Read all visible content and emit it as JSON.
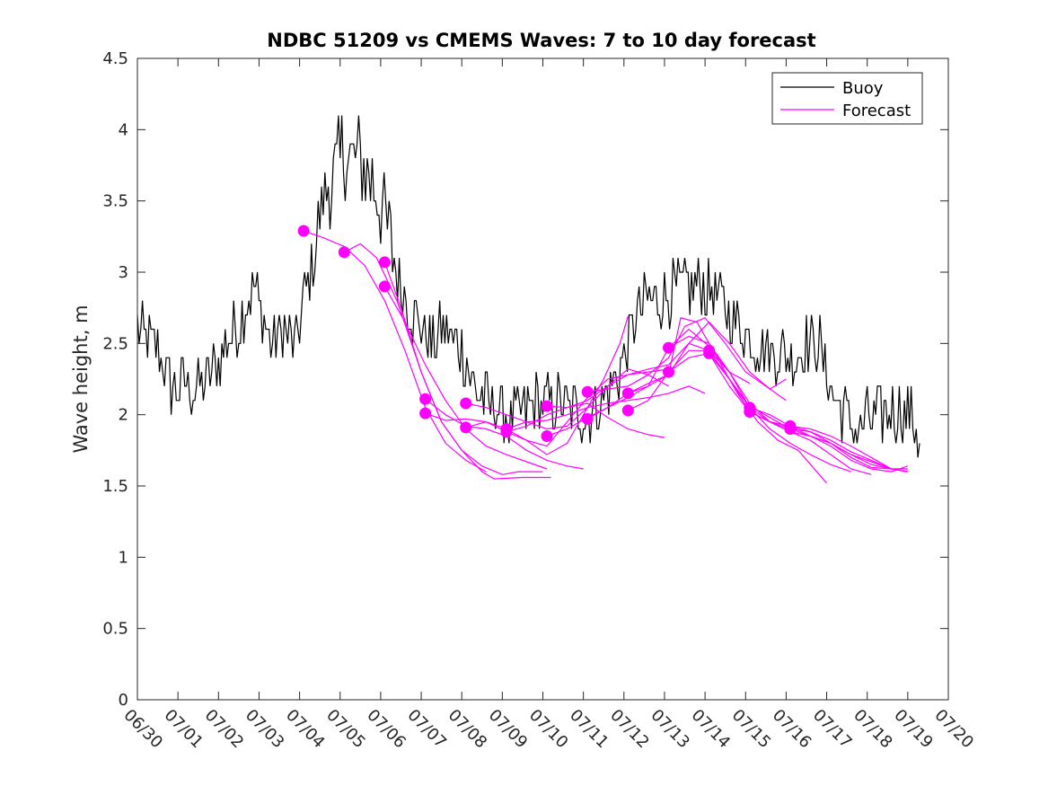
{
  "chart_data": {
    "type": "line",
    "title": "NDBC 51209 vs CMEMS Waves: 7 to 10 day forecast",
    "xlabel": "",
    "ylabel": "Wave height, m",
    "xlim": [
      0,
      20
    ],
    "ylim": [
      0,
      4.5
    ],
    "x_tick_labels": [
      "06/30",
      "07/01",
      "07/02",
      "07/03",
      "07/04",
      "07/05",
      "07/06",
      "07/07",
      "07/08",
      "07/09",
      "07/10",
      "07/11",
      "07/12",
      "07/13",
      "07/14",
      "07/15",
      "07/16",
      "07/17",
      "07/18",
      "07/19",
      "07/20"
    ],
    "y_ticks": [
      0,
      0.5,
      1,
      1.5,
      2,
      2.5,
      3,
      3.5,
      4,
      4.5
    ],
    "y_tick_labels": [
      "0",
      "0.5",
      "1",
      "1.5",
      "2",
      "2.5",
      "3",
      "3.5",
      "4",
      "4.5"
    ],
    "x_unit_note": "x values are days after 06/30",
    "grid": false,
    "legend_position": "top-right",
    "colors": {
      "buoy": "#000000",
      "forecast": "#ff00ff"
    },
    "buoy_anchors": [
      [
        0.0,
        2.6
      ],
      [
        0.3,
        2.5
      ],
      [
        0.6,
        2.4
      ],
      [
        0.8,
        2.2
      ],
      [
        1.2,
        2.2
      ],
      [
        1.5,
        2.2
      ],
      [
        1.8,
        2.3
      ],
      [
        2.2,
        2.5
      ],
      [
        2.6,
        2.7
      ],
      [
        2.9,
        2.9
      ],
      [
        3.1,
        2.7
      ],
      [
        3.3,
        2.5
      ],
      [
        3.6,
        2.6
      ],
      [
        3.9,
        2.5
      ],
      [
        4.1,
        2.8
      ],
      [
        4.3,
        3.0
      ],
      [
        4.5,
        3.4
      ],
      [
        4.7,
        3.6
      ],
      [
        4.9,
        3.7
      ],
      [
        5.1,
        3.85
      ],
      [
        5.3,
        3.8
      ],
      [
        5.5,
        3.75
      ],
      [
        5.7,
        3.7
      ],
      [
        5.9,
        3.6
      ],
      [
        6.1,
        3.4
      ],
      [
        6.3,
        3.1
      ],
      [
        6.5,
        2.9
      ],
      [
        6.7,
        2.75
      ],
      [
        6.9,
        2.65
      ],
      [
        7.1,
        2.55
      ],
      [
        7.3,
        2.5
      ],
      [
        7.5,
        2.6
      ],
      [
        7.7,
        2.55
      ],
      [
        7.9,
        2.5
      ],
      [
        8.1,
        2.4
      ],
      [
        8.3,
        2.2
      ],
      [
        8.6,
        2.1
      ],
      [
        8.9,
        2.05
      ],
      [
        9.2,
        1.95
      ],
      [
        9.5,
        2.0
      ],
      [
        9.8,
        2.1
      ],
      [
        10.1,
        2.05
      ],
      [
        10.4,
        2.1
      ],
      [
        10.7,
        2.05
      ],
      [
        11.0,
        2.0
      ],
      [
        11.3,
        2.05
      ],
      [
        11.6,
        2.15
      ],
      [
        11.9,
        2.3
      ],
      [
        12.1,
        2.5
      ],
      [
        12.3,
        2.7
      ],
      [
        12.6,
        2.8
      ],
      [
        12.9,
        2.8
      ],
      [
        13.2,
        2.85
      ],
      [
        13.5,
        2.9
      ],
      [
        13.8,
        2.9
      ],
      [
        14.1,
        2.9
      ],
      [
        14.4,
        2.8
      ],
      [
        14.7,
        2.7
      ],
      [
        15.0,
        2.6
      ],
      [
        15.3,
        2.5
      ],
      [
        15.6,
        2.45
      ],
      [
        15.9,
        2.45
      ],
      [
        16.2,
        2.4
      ],
      [
        16.5,
        2.5
      ],
      [
        16.8,
        2.5
      ],
      [
        17.0,
        2.3
      ],
      [
        17.2,
        2.1
      ],
      [
        17.5,
        2.0
      ],
      [
        17.8,
        1.9
      ],
      [
        18.0,
        1.95
      ],
      [
        18.3,
        2.0
      ],
      [
        18.6,
        2.05
      ],
      [
        18.9,
        2.0
      ],
      [
        19.2,
        1.95
      ],
      [
        19.3,
        1.8
      ]
    ],
    "buoy_noise_amplitude": 0.22,
    "forecast_markers": [
      [
        4.1,
        3.29
      ],
      [
        5.1,
        3.14
      ],
      [
        6.1,
        3.07
      ],
      [
        6.1,
        2.9
      ],
      [
        7.1,
        2.11
      ],
      [
        7.1,
        2.01
      ],
      [
        8.1,
        2.08
      ],
      [
        8.1,
        1.91
      ],
      [
        9.1,
        1.9
      ],
      [
        9.1,
        1.88
      ],
      [
        10.1,
        2.06
      ],
      [
        10.1,
        1.85
      ],
      [
        11.1,
        2.16
      ],
      [
        11.1,
        1.97
      ],
      [
        12.1,
        2.15
      ],
      [
        12.1,
        2.03
      ],
      [
        13.1,
        2.47
      ],
      [
        13.1,
        2.3
      ],
      [
        14.1,
        2.45
      ],
      [
        14.1,
        2.43
      ],
      [
        15.1,
        2.05
      ],
      [
        15.1,
        2.02
      ],
      [
        16.1,
        1.92
      ],
      [
        16.1,
        1.9
      ]
    ],
    "series": [
      {
        "name": "Buoy"
      },
      {
        "name": "Forecast"
      }
    ],
    "forecast_tracks": [
      [
        [
          4.1,
          3.29
        ],
        [
          4.6,
          3.24
        ],
        [
          5.1,
          3.18
        ],
        [
          5.6,
          3.05
        ],
        [
          6.1,
          2.8
        ],
        [
          6.6,
          2.45
        ],
        [
          7.1,
          2.05
        ],
        [
          7.6,
          1.8
        ],
        [
          8.1,
          1.68
        ],
        [
          8.6,
          1.6
        ]
      ],
      [
        [
          5.1,
          3.14
        ],
        [
          5.5,
          3.2
        ],
        [
          5.9,
          3.1
        ],
        [
          6.4,
          2.8
        ],
        [
          7.0,
          2.3
        ],
        [
          7.5,
          1.95
        ],
        [
          8.0,
          1.75
        ],
        [
          8.5,
          1.64
        ],
        [
          9.0,
          1.58
        ],
        [
          9.4,
          1.6
        ],
        [
          10.0,
          1.6
        ]
      ],
      [
        [
          6.1,
          3.07
        ],
        [
          6.5,
          2.75
        ],
        [
          7.0,
          2.3
        ],
        [
          7.5,
          1.95
        ],
        [
          8.0,
          1.75
        ],
        [
          8.5,
          1.6
        ],
        [
          8.8,
          1.55
        ],
        [
          9.5,
          1.56
        ],
        [
          10.2,
          1.56
        ]
      ],
      [
        [
          6.1,
          2.9
        ],
        [
          6.6,
          2.65
        ],
        [
          7.1,
          2.35
        ],
        [
          7.6,
          2.1
        ],
        [
          8.1,
          1.9
        ],
        [
          8.6,
          1.78
        ],
        [
          9.1,
          1.72
        ],
        [
          9.6,
          1.67
        ],
        [
          10.1,
          1.62
        ]
      ],
      [
        [
          7.1,
          2.11
        ],
        [
          7.6,
          2.0
        ],
        [
          8.1,
          1.92
        ],
        [
          8.6,
          1.9
        ],
        [
          9.1,
          1.85
        ],
        [
          9.6,
          1.75
        ],
        [
          10.1,
          1.68
        ],
        [
          10.6,
          1.64
        ],
        [
          11.0,
          1.62
        ]
      ],
      [
        [
          7.1,
          2.01
        ],
        [
          7.6,
          1.96
        ],
        [
          8.1,
          1.97
        ],
        [
          8.6,
          1.95
        ],
        [
          9.1,
          1.9
        ],
        [
          9.6,
          1.82
        ],
        [
          10.1,
          1.72
        ],
        [
          10.6,
          1.8
        ],
        [
          11.0,
          2.0
        ],
        [
          11.5,
          2.25
        ],
        [
          11.9,
          2.5
        ],
        [
          12.1,
          2.69
        ]
      ],
      [
        [
          8.1,
          2.08
        ],
        [
          8.6,
          2.05
        ],
        [
          9.1,
          2.0
        ],
        [
          9.6,
          1.95
        ],
        [
          10.1,
          1.9
        ],
        [
          10.6,
          1.92
        ],
        [
          11.1,
          2.05
        ],
        [
          11.6,
          2.2
        ],
        [
          12.1,
          2.32
        ],
        [
          12.6,
          2.28
        ],
        [
          13.1,
          2.2
        ]
      ],
      [
        [
          8.1,
          1.91
        ],
        [
          8.6,
          1.95
        ],
        [
          9.1,
          1.88
        ],
        [
          9.6,
          1.82
        ],
        [
          10.1,
          1.78
        ],
        [
          10.6,
          1.95
        ],
        [
          11.1,
          2.12
        ],
        [
          11.6,
          2.25
        ],
        [
          12.1,
          2.28
        ],
        [
          12.6,
          2.3
        ],
        [
          13.1,
          2.32
        ]
      ],
      [
        [
          9.1,
          1.9
        ],
        [
          9.6,
          1.95
        ],
        [
          10.1,
          1.96
        ],
        [
          10.6,
          2.0
        ],
        [
          11.1,
          2.05
        ],
        [
          11.6,
          2.08
        ],
        [
          12.1,
          2.1
        ],
        [
          12.6,
          2.12
        ],
        [
          13.1,
          2.15
        ],
        [
          13.6,
          2.2
        ],
        [
          14.0,
          2.15
        ]
      ],
      [
        [
          9.1,
          1.88
        ],
        [
          9.6,
          1.92
        ],
        [
          10.1,
          2.0
        ],
        [
          10.6,
          2.05
        ],
        [
          11.1,
          2.08
        ],
        [
          11.6,
          1.98
        ],
        [
          12.1,
          1.9
        ],
        [
          12.6,
          1.86
        ],
        [
          13.0,
          1.84
        ]
      ],
      [
        [
          10.1,
          2.06
        ],
        [
          10.6,
          2.05
        ],
        [
          11.1,
          2.1
        ],
        [
          11.6,
          2.2
        ],
        [
          12.1,
          2.28
        ],
        [
          12.6,
          2.32
        ],
        [
          13.1,
          2.35
        ],
        [
          13.6,
          2.5
        ],
        [
          14.1,
          2.45
        ],
        [
          14.6,
          2.3
        ],
        [
          15.1,
          2.22
        ]
      ],
      [
        [
          10.1,
          1.85
        ],
        [
          10.6,
          1.9
        ],
        [
          11.1,
          1.98
        ],
        [
          11.6,
          2.05
        ],
        [
          12.1,
          2.12
        ],
        [
          12.6,
          2.2
        ],
        [
          13.1,
          2.28
        ],
        [
          13.6,
          2.5
        ],
        [
          14.1,
          2.65
        ],
        [
          14.6,
          2.5
        ],
        [
          15.1,
          2.3
        ],
        [
          15.6,
          2.18
        ],
        [
          16.0,
          2.25
        ]
      ],
      [
        [
          11.1,
          2.16
        ],
        [
          11.6,
          2.18
        ],
        [
          12.1,
          2.2
        ],
        [
          12.6,
          2.28
        ],
        [
          13.1,
          2.4
        ],
        [
          13.5,
          2.62
        ],
        [
          14.0,
          2.68
        ],
        [
          14.5,
          2.5
        ],
        [
          15.0,
          2.3
        ],
        [
          15.5,
          2.2
        ],
        [
          16.0,
          2.1
        ]
      ],
      [
        [
          11.1,
          1.97
        ],
        [
          11.6,
          2.05
        ],
        [
          12.1,
          2.15
        ],
        [
          12.6,
          2.22
        ],
        [
          13.1,
          2.28
        ],
        [
          13.4,
          2.68
        ],
        [
          13.8,
          2.65
        ],
        [
          14.3,
          2.4
        ],
        [
          14.8,
          2.15
        ],
        [
          15.3,
          1.95
        ],
        [
          15.8,
          1.82
        ],
        [
          16.3,
          1.75
        ],
        [
          17.0,
          1.52
        ]
      ],
      [
        [
          12.1,
          2.15
        ],
        [
          12.6,
          2.2
        ],
        [
          13.1,
          2.47
        ],
        [
          13.6,
          2.6
        ],
        [
          14.1,
          2.48
        ],
        [
          14.6,
          2.3
        ],
        [
          15.1,
          2.05
        ],
        [
          15.6,
          1.9
        ],
        [
          16.1,
          1.8
        ],
        [
          16.6,
          1.72
        ],
        [
          17.1,
          1.65
        ],
        [
          17.6,
          1.6
        ]
      ],
      [
        [
          12.1,
          2.03
        ],
        [
          12.6,
          2.1
        ],
        [
          13.1,
          2.3
        ],
        [
          13.6,
          2.45
        ],
        [
          14.1,
          2.45
        ],
        [
          14.6,
          2.25
        ],
        [
          15.1,
          2.05
        ],
        [
          15.6,
          1.95
        ],
        [
          16.1,
          1.88
        ],
        [
          16.6,
          1.82
        ],
        [
          17.1,
          1.72
        ],
        [
          17.6,
          1.62
        ],
        [
          18.1,
          1.58
        ]
      ],
      [
        [
          13.1,
          2.47
        ],
        [
          13.6,
          2.55
        ],
        [
          14.1,
          2.5
        ],
        [
          14.6,
          2.3
        ],
        [
          15.1,
          2.08
        ],
        [
          15.6,
          1.95
        ],
        [
          16.1,
          1.88
        ],
        [
          16.6,
          1.85
        ],
        [
          17.1,
          1.8
        ],
        [
          17.6,
          1.7
        ],
        [
          18.1,
          1.63
        ],
        [
          18.6,
          1.62
        ],
        [
          19.0,
          1.6
        ]
      ],
      [
        [
          13.1,
          2.3
        ],
        [
          13.6,
          2.4
        ],
        [
          14.1,
          2.43
        ],
        [
          14.6,
          2.25
        ],
        [
          15.1,
          2.02
        ],
        [
          15.6,
          1.95
        ],
        [
          16.1,
          1.92
        ],
        [
          16.6,
          1.88
        ],
        [
          17.1,
          1.8
        ],
        [
          17.6,
          1.72
        ],
        [
          18.1,
          1.65
        ],
        [
          18.6,
          1.62
        ],
        [
          19.0,
          1.62
        ]
      ],
      [
        [
          14.1,
          2.45
        ],
        [
          14.6,
          2.25
        ],
        [
          15.1,
          2.06
        ],
        [
          15.6,
          1.98
        ],
        [
          16.1,
          1.9
        ],
        [
          16.6,
          1.85
        ],
        [
          17.1,
          1.78
        ],
        [
          17.6,
          1.68
        ],
        [
          18.1,
          1.62
        ],
        [
          18.6,
          1.6
        ],
        [
          19.0,
          1.64
        ]
      ],
      [
        [
          14.1,
          2.43
        ],
        [
          14.6,
          2.2
        ],
        [
          15.1,
          2.02
        ],
        [
          15.6,
          1.95
        ],
        [
          16.1,
          1.9
        ],
        [
          16.6,
          1.88
        ],
        [
          17.1,
          1.82
        ],
        [
          17.6,
          1.74
        ],
        [
          18.1,
          1.68
        ],
        [
          18.6,
          1.62
        ],
        [
          19.0,
          1.6
        ]
      ],
      [
        [
          15.1,
          2.05
        ],
        [
          15.6,
          2.0
        ],
        [
          16.1,
          1.92
        ],
        [
          16.6,
          1.85
        ],
        [
          17.1,
          1.8
        ],
        [
          17.6,
          1.72
        ],
        [
          18.1,
          1.67
        ],
        [
          18.6,
          1.62
        ],
        [
          19.0,
          1.62
        ]
      ],
      [
        [
          16.1,
          1.92
        ],
        [
          16.6,
          1.9
        ],
        [
          17.1,
          1.85
        ],
        [
          17.6,
          1.78
        ],
        [
          18.1,
          1.7
        ],
        [
          18.6,
          1.62
        ],
        [
          19.0,
          1.6
        ]
      ]
    ]
  }
}
